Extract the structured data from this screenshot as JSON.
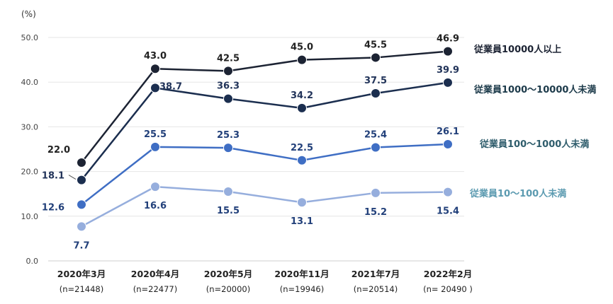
{
  "chart_data": {
    "type": "line",
    "unit_label": "(%)",
    "ylim": [
      0,
      50
    ],
    "yticks": [
      "0.0",
      "10.0",
      "20.0",
      "30.0",
      "40.0",
      "50.0"
    ],
    "categories": [
      "2020年3月",
      "2020年4月",
      "2020年5月",
      "2020年11月",
      "2021年7月",
      "2022年2月"
    ],
    "sample_sizes": [
      "(n=21448)",
      "(n=22477)",
      "(n=20000)",
      "(n=19946)",
      "(n=20514)",
      "(n= 20490 )"
    ],
    "series": [
      {
        "name": "従業員10000人以上",
        "values": [
          22.0,
          43.0,
          42.5,
          45.0,
          45.5,
          46.9
        ],
        "labels": [
          "22.0",
          "43.0",
          "42.5",
          "45.0",
          "45.5",
          "46.9"
        ],
        "color": "#1c2333",
        "label_color": "#222222",
        "legend_color": "#1c2333"
      },
      {
        "name": "従業員1000〜10000人未満",
        "values": [
          18.1,
          38.7,
          36.3,
          34.2,
          37.5,
          39.9
        ],
        "labels": [
          "18.1",
          "38.7",
          "36.3",
          "34.2",
          "37.5",
          "39.9"
        ],
        "color": "#1b2e4f",
        "label_color": "#22345a",
        "legend_color": "#1c3a4a"
      },
      {
        "name": "従業員100〜1000人未満",
        "values": [
          12.6,
          25.5,
          25.3,
          22.5,
          25.4,
          26.1
        ],
        "labels": [
          "12.6",
          "25.5",
          "25.3",
          "22.5",
          "25.4",
          "26.1"
        ],
        "color": "#3f6ec4",
        "label_color": "#22407a",
        "legend_color": "#2f5d6c"
      },
      {
        "name": "従業員10〜100人未満",
        "values": [
          7.7,
          16.6,
          15.5,
          13.1,
          15.2,
          15.4
        ],
        "labels": [
          "7.7",
          "16.6",
          "15.5",
          "13.1",
          "15.2",
          "15.4"
        ],
        "color": "#96aedd",
        "label_color": "#22407a",
        "legend_color": "#5b9ab0"
      }
    ]
  }
}
